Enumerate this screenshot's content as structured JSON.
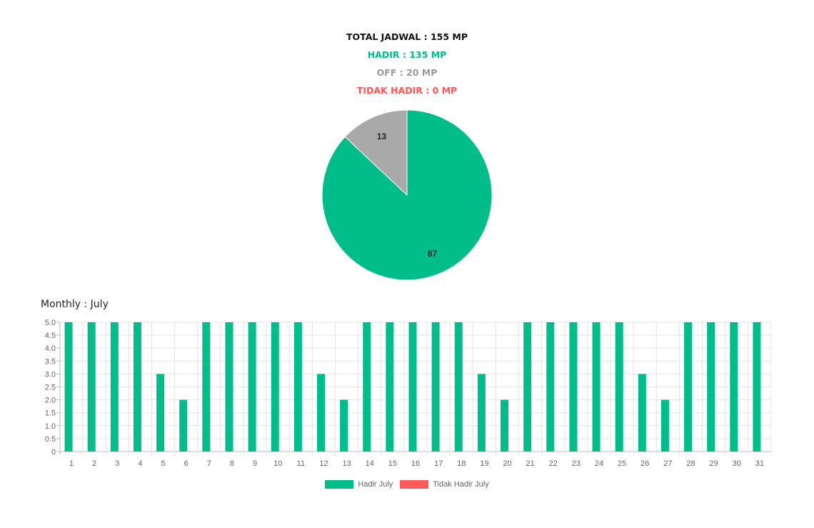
{
  "summary": {
    "total": "TOTAL JADWAL : 155 MP",
    "hadir": "HADIR : 135 MP",
    "off": "OFF : 20 MP",
    "tidak_hadir": "TIDAK HADIR : 0 MP"
  },
  "monthly_title": "Monthly : July",
  "colors": {
    "hadir": "#00bd8a",
    "off": "#a9a9a9",
    "tidak_hadir": "#ff5a5a"
  },
  "chart_data": [
    {
      "type": "pie",
      "slices": [
        {
          "label": "87",
          "value": 87,
          "color": "#00bd8a"
        },
        {
          "label": "13",
          "value": 13,
          "color": "#a9a9a9"
        }
      ]
    },
    {
      "type": "bar",
      "categories": [
        "1",
        "2",
        "3",
        "4",
        "5",
        "6",
        "7",
        "8",
        "9",
        "10",
        "11",
        "12",
        "13",
        "14",
        "15",
        "16",
        "17",
        "18",
        "19",
        "20",
        "21",
        "22",
        "23",
        "24",
        "25",
        "26",
        "27",
        "28",
        "29",
        "30",
        "31"
      ],
      "series": [
        {
          "name": "Hadir July",
          "color": "#00bd8a",
          "values": [
            5,
            5,
            5,
            5,
            3,
            2,
            5,
            5,
            5,
            5,
            5,
            3,
            2,
            5,
            5,
            5,
            5,
            5,
            3,
            2,
            5,
            5,
            5,
            5,
            5,
            3,
            2,
            5,
            5,
            5,
            5
          ]
        },
        {
          "name": "Tidak Hadir July",
          "color": "#ff5a5a",
          "values": [
            0,
            0,
            0,
            0,
            0,
            0,
            0,
            0,
            0,
            0,
            0,
            0,
            0,
            0,
            0,
            0,
            0,
            0,
            0,
            0,
            0,
            0,
            0,
            0,
            0,
            0,
            0,
            0,
            0,
            0,
            0
          ]
        }
      ],
      "ylim": [
        0,
        5
      ],
      "yticks": [
        "0",
        "0.5",
        "1.0",
        "1.5",
        "2.0",
        "2.5",
        "3.0",
        "3.5",
        "4.0",
        "4.5",
        "5.0"
      ],
      "grid": true,
      "legend": "bottom"
    }
  ]
}
